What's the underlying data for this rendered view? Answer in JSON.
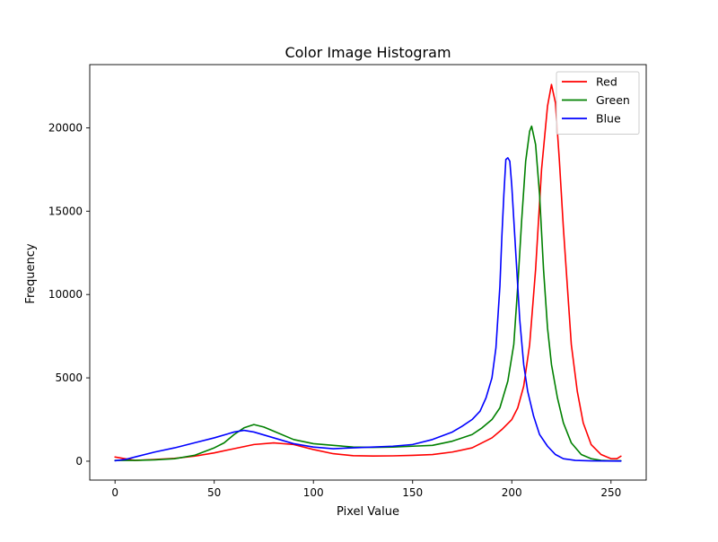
{
  "chart_data": {
    "type": "line",
    "title": "Color Image Histogram",
    "xlabel": "Pixel Value",
    "ylabel": "Frequency",
    "xlim": [
      -12.75,
      267.75
    ],
    "ylim": [
      -1133,
      23793
    ],
    "xticks": [
      0,
      50,
      100,
      150,
      200,
      250
    ],
    "yticks": [
      0,
      5000,
      10000,
      15000,
      20000
    ],
    "xtick_labels": [
      "0",
      "50",
      "100",
      "150",
      "200",
      "250"
    ],
    "ytick_labels": [
      "0",
      "5000",
      "10000",
      "15000",
      "20000"
    ],
    "grid": false,
    "legend_position": "top-right",
    "series": [
      {
        "name": "Red",
        "color": "#ff0000",
        "points": [
          [
            0,
            250
          ],
          [
            10,
            50
          ],
          [
            20,
            100
          ],
          [
            30,
            170
          ],
          [
            40,
            300
          ],
          [
            50,
            500
          ],
          [
            60,
            750
          ],
          [
            70,
            1000
          ],
          [
            80,
            1100
          ],
          [
            90,
            1000
          ],
          [
            100,
            700
          ],
          [
            110,
            450
          ],
          [
            120,
            330
          ],
          [
            130,
            310
          ],
          [
            140,
            320
          ],
          [
            150,
            350
          ],
          [
            160,
            400
          ],
          [
            170,
            550
          ],
          [
            180,
            800
          ],
          [
            190,
            1400
          ],
          [
            195,
            1900
          ],
          [
            200,
            2500
          ],
          [
            203,
            3200
          ],
          [
            206,
            4500
          ],
          [
            209,
            7000
          ],
          [
            212,
            11500
          ],
          [
            215,
            17500
          ],
          [
            218,
            21300
          ],
          [
            220,
            22600
          ],
          [
            222,
            21500
          ],
          [
            224,
            18000
          ],
          [
            226,
            14000
          ],
          [
            228,
            10500
          ],
          [
            230,
            7000
          ],
          [
            233,
            4200
          ],
          [
            236,
            2300
          ],
          [
            240,
            1000
          ],
          [
            245,
            400
          ],
          [
            250,
            150
          ],
          [
            253,
            150
          ],
          [
            255,
            300
          ]
        ]
      },
      {
        "name": "Green",
        "color": "#008000",
        "points": [
          [
            0,
            50
          ],
          [
            10,
            50
          ],
          [
            20,
            80
          ],
          [
            30,
            150
          ],
          [
            40,
            350
          ],
          [
            50,
            800
          ],
          [
            55,
            1100
          ],
          [
            60,
            1600
          ],
          [
            65,
            2000
          ],
          [
            70,
            2200
          ],
          [
            75,
            2050
          ],
          [
            80,
            1800
          ],
          [
            90,
            1300
          ],
          [
            100,
            1050
          ],
          [
            110,
            950
          ],
          [
            120,
            850
          ],
          [
            130,
            830
          ],
          [
            140,
            850
          ],
          [
            150,
            900
          ],
          [
            160,
            950
          ],
          [
            170,
            1200
          ],
          [
            180,
            1600
          ],
          [
            185,
            2000
          ],
          [
            190,
            2500
          ],
          [
            194,
            3200
          ],
          [
            198,
            4800
          ],
          [
            201,
            7000
          ],
          [
            203,
            10500
          ],
          [
            205,
            14500
          ],
          [
            207,
            18000
          ],
          [
            209,
            19800
          ],
          [
            210,
            20100
          ],
          [
            212,
            19000
          ],
          [
            214,
            16000
          ],
          [
            216,
            11500
          ],
          [
            218,
            8000
          ],
          [
            220,
            5800
          ],
          [
            223,
            3800
          ],
          [
            226,
            2300
          ],
          [
            230,
            1100
          ],
          [
            235,
            400
          ],
          [
            240,
            150
          ],
          [
            245,
            50
          ],
          [
            250,
            20
          ],
          [
            255,
            30
          ]
        ]
      },
      {
        "name": "Blue",
        "color": "#0000ff",
        "points": [
          [
            0,
            30
          ],
          [
            5,
            100
          ],
          [
            10,
            250
          ],
          [
            20,
            550
          ],
          [
            30,
            800
          ],
          [
            40,
            1100
          ],
          [
            50,
            1400
          ],
          [
            60,
            1750
          ],
          [
            65,
            1850
          ],
          [
            70,
            1750
          ],
          [
            80,
            1400
          ],
          [
            90,
            1050
          ],
          [
            100,
            850
          ],
          [
            110,
            750
          ],
          [
            120,
            800
          ],
          [
            130,
            850
          ],
          [
            140,
            900
          ],
          [
            150,
            1000
          ],
          [
            160,
            1300
          ],
          [
            170,
            1750
          ],
          [
            175,
            2100
          ],
          [
            180,
            2500
          ],
          [
            184,
            3000
          ],
          [
            187,
            3800
          ],
          [
            190,
            5000
          ],
          [
            192,
            6800
          ],
          [
            194,
            10500
          ],
          [
            195,
            13500
          ],
          [
            196,
            16000
          ],
          [
            197,
            18100
          ],
          [
            198,
            18200
          ],
          [
            199,
            18000
          ],
          [
            200,
            16500
          ],
          [
            202,
            12500
          ],
          [
            204,
            8500
          ],
          [
            206,
            5800
          ],
          [
            208,
            4200
          ],
          [
            211,
            2700
          ],
          [
            214,
            1600
          ],
          [
            218,
            900
          ],
          [
            222,
            400
          ],
          [
            226,
            150
          ],
          [
            232,
            50
          ],
          [
            240,
            20
          ],
          [
            255,
            10
          ]
        ]
      }
    ]
  }
}
